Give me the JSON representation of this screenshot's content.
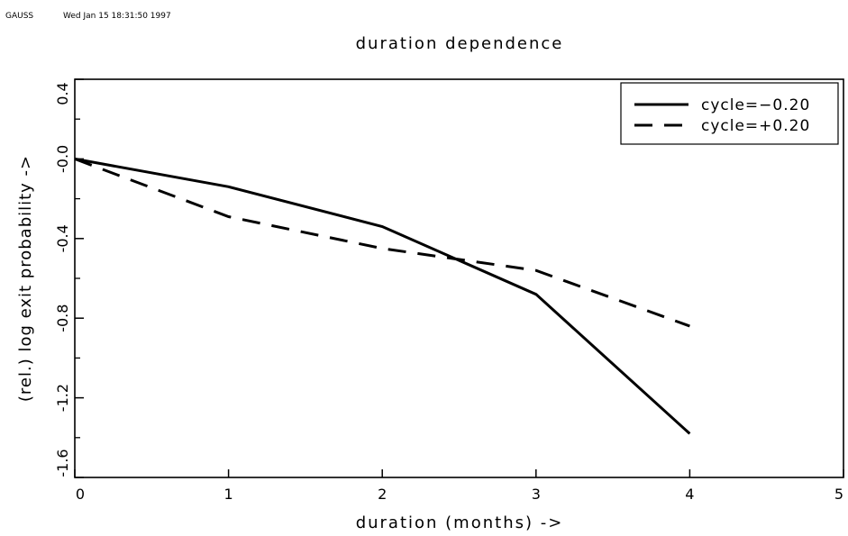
{
  "header": {
    "program": "GAUSS",
    "timestamp": "Wed Jan 15 18:31:50 1997"
  },
  "chart_data": {
    "type": "line",
    "title": "duration dependence",
    "xlabel": "duration (months) ->",
    "ylabel": "(rel.) log exit probability ->",
    "xlim": [
      0,
      5
    ],
    "ylim": [
      -1.6,
      0.4
    ],
    "x_ticks": [
      0,
      1,
      2,
      3,
      4,
      5
    ],
    "x_tick_labels": [
      "0",
      "1",
      "2",
      "3",
      "4",
      "5"
    ],
    "y_ticks": [
      -1.6,
      -1.2,
      -0.8,
      -0.4,
      0.0,
      0.4
    ],
    "y_tick_labels": [
      "-1.6",
      "-1.2",
      "-0.8",
      "-0.4",
      "-0.0",
      "0.4"
    ],
    "y_minor_ticks": [
      -1.4,
      -1.0,
      -0.6,
      -0.2,
      0.2
    ],
    "grid": false,
    "legend_position": "top-right",
    "series": [
      {
        "name": "cycle=−0.20",
        "style": "solid",
        "color": "#000000",
        "x": [
          0,
          1,
          2,
          3,
          4
        ],
        "values": [
          0.0,
          -0.14,
          -0.34,
          -0.68,
          -1.38
        ]
      },
      {
        "name": "cycle=+0.20",
        "style": "dashed",
        "color": "#000000",
        "x": [
          0,
          1,
          2,
          3,
          4
        ],
        "values": [
          0.0,
          -0.29,
          -0.45,
          -0.56,
          -0.84
        ]
      }
    ]
  }
}
